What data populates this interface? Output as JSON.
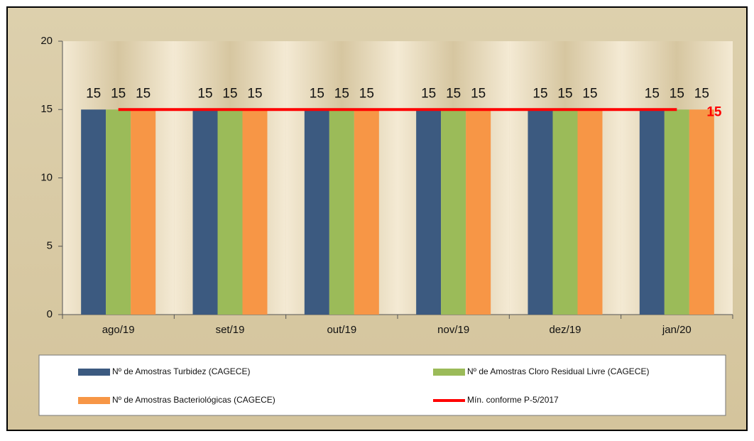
{
  "chart_data": {
    "type": "bar",
    "categories": [
      "ago/19",
      "set/19",
      "out/19",
      "nov/19",
      "dez/19",
      "jan/20"
    ],
    "series": [
      {
        "name": "Nº de Amostras Turbidez (CAGECE)",
        "color": "#3c5a80",
        "values": [
          15,
          15,
          15,
          15,
          15,
          15
        ]
      },
      {
        "name": "Nº de Amostras Cloro Residual Livre (CAGECE)",
        "color": "#9bbb59",
        "values": [
          15,
          15,
          15,
          15,
          15,
          15
        ]
      },
      {
        "name": "Nº de Amostras Bacteriológicas (CAGECE)",
        "color": "#f79646",
        "values": [
          15,
          15,
          15,
          15,
          15,
          15
        ]
      },
      {
        "name": "Mín. conforme P-5/2017",
        "color": "#ff0000",
        "type": "line",
        "values": [
          15,
          15,
          15,
          15,
          15,
          15
        ]
      }
    ],
    "ylim": [
      0,
      20
    ],
    "yticks": [
      0,
      5,
      10,
      15,
      20
    ],
    "grid": false
  }
}
